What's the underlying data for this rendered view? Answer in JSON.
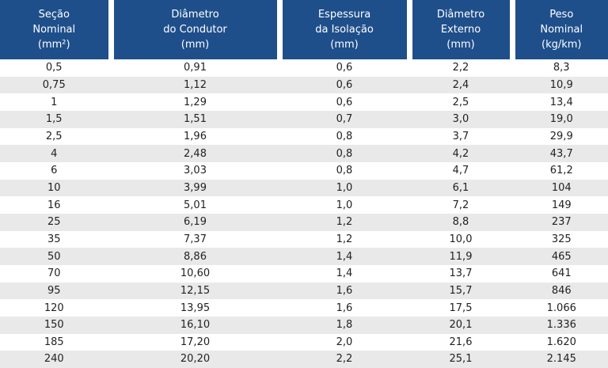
{
  "header": {
    "columns": [
      [
        "Seção",
        "Nominal",
        "(mm²)"
      ],
      [
        "Diâmetro",
        "do Condutor",
        "(mm)"
      ],
      [
        "Espessura",
        "da Isolação",
        "(mm)"
      ],
      [
        "Diâmetro",
        "Externo",
        "(mm)"
      ],
      [
        "Peso",
        "Nominal",
        "(kg/km)"
      ]
    ]
  },
  "table": {
    "rows": [
      [
        "0,5",
        "0,91",
        "0,6",
        "2,2",
        "8,3"
      ],
      [
        "0,75",
        "1,12",
        "0,6",
        "2,4",
        "10,9"
      ],
      [
        "1",
        "1,29",
        "0,6",
        "2,5",
        "13,4"
      ],
      [
        "1,5",
        "1,51",
        "0,7",
        "3,0",
        "19,0"
      ],
      [
        "2,5",
        "1,96",
        "0,8",
        "3,7",
        "29,9"
      ],
      [
        "4",
        "2,48",
        "0,8",
        "4,2",
        "43,7"
      ],
      [
        "6",
        "3,03",
        "0,8",
        "4,7",
        "61,2"
      ],
      [
        "10",
        "3,99",
        "1,0",
        "6,1",
        "104"
      ],
      [
        "16",
        "5,01",
        "1,0",
        "7,2",
        "149"
      ],
      [
        "25",
        "6,19",
        "1,2",
        "8,8",
        "237"
      ],
      [
        "35",
        "7,37",
        "1,2",
        "10,0",
        "325"
      ],
      [
        "50",
        "8,86",
        "1,4",
        "11,9",
        "465"
      ],
      [
        "70",
        "10,60",
        "1,4",
        "13,7",
        "641"
      ],
      [
        "95",
        "12,15",
        "1,6",
        "15,7",
        "846"
      ],
      [
        "120",
        "13,95",
        "1,6",
        "17,5",
        "1.066"
      ],
      [
        "150",
        "16,10",
        "1,8",
        "20,1",
        "1.336"
      ],
      [
        "185",
        "17,20",
        "2,0",
        "21,6",
        "1.620"
      ],
      [
        "240",
        "20,20",
        "2,2",
        "25,1",
        "2.145"
      ]
    ]
  }
}
